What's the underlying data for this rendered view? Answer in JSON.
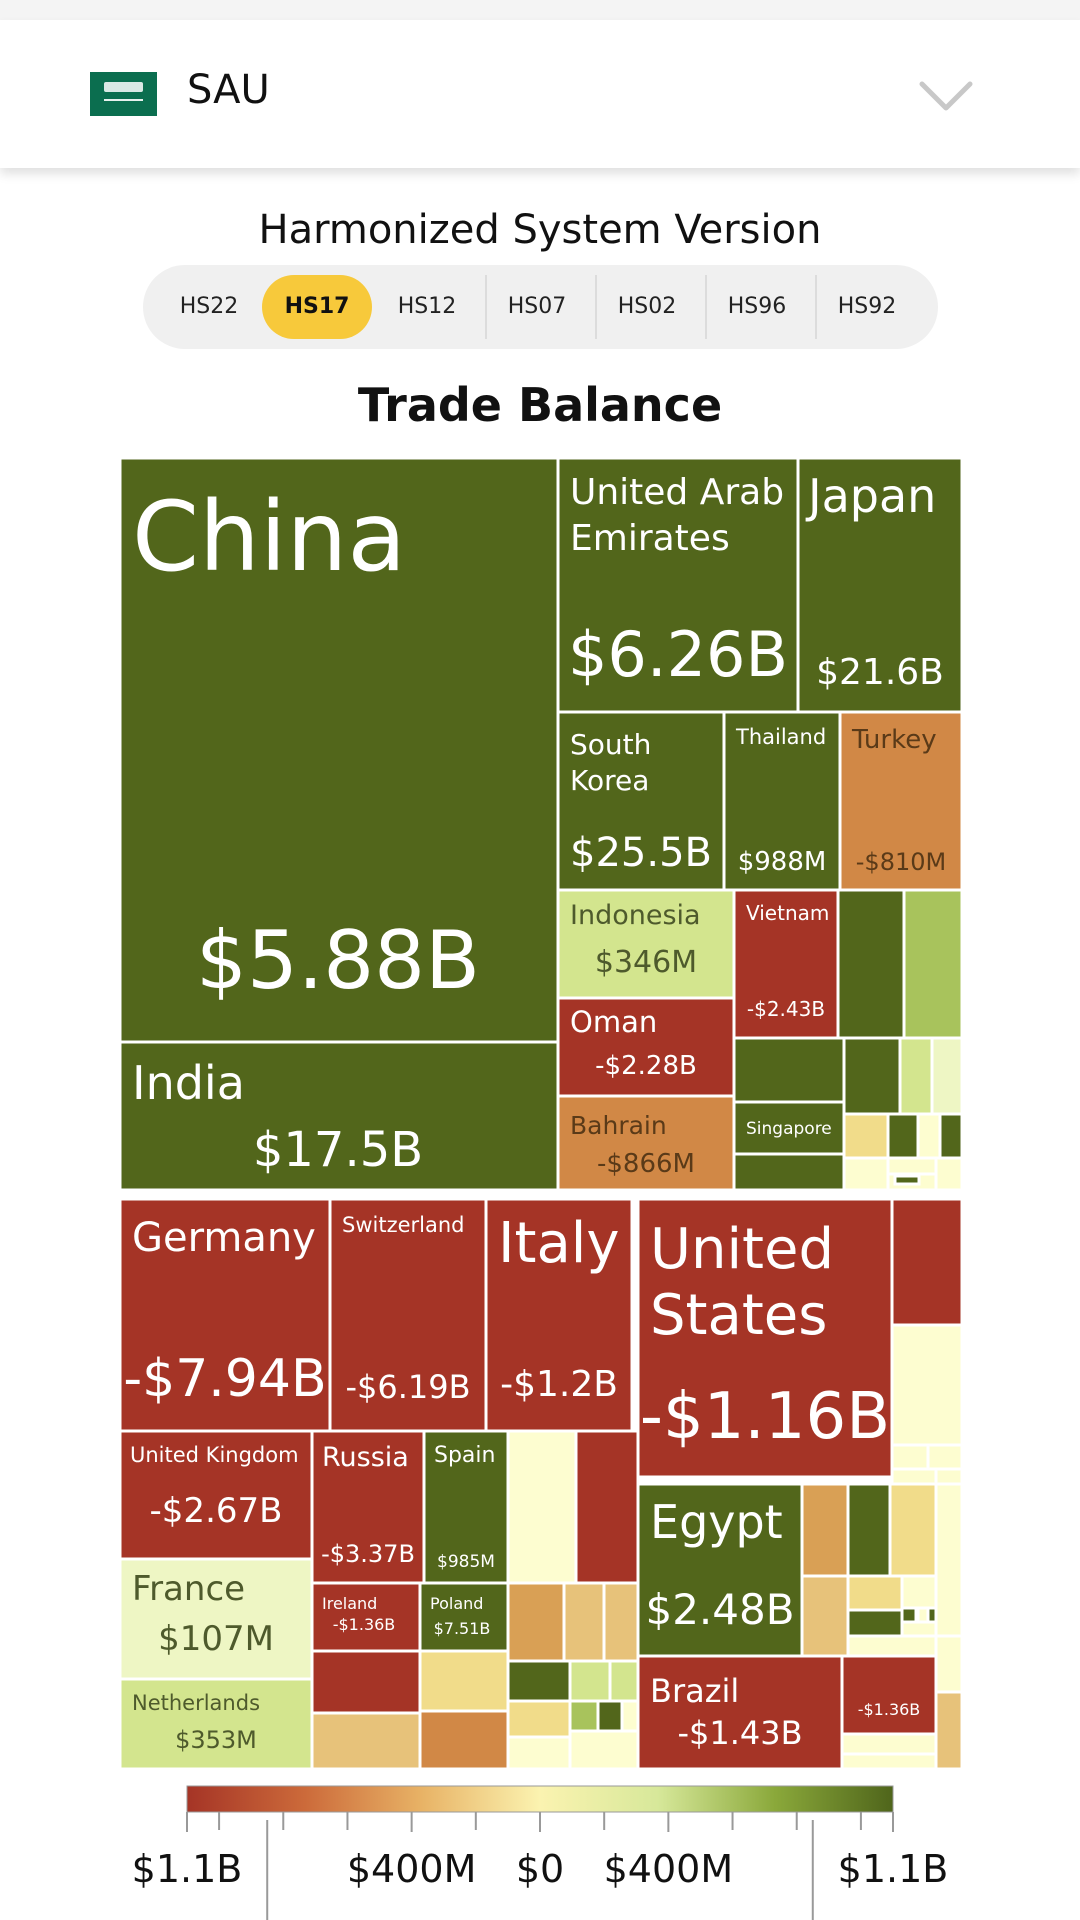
{
  "header": {
    "country_code": "SAU",
    "flag_icon": "saudi-arabia-flag-icon",
    "dropdown_icon": "chevron-down-icon"
  },
  "hs_selector": {
    "title": "Harmonized System Version",
    "tabs": [
      "HS22",
      "HS17",
      "HS12",
      "HS07",
      "HS02",
      "HS96",
      "HS92"
    ],
    "active": "HS17"
  },
  "colors": {
    "dark_green": "#52661b",
    "mid_green": "#8aa83a",
    "light_green": "#a8c35c",
    "pale_green": "#d3e58e",
    "paler_green": "#eef6c4",
    "pale_yellow": "#fdfdd0",
    "yellow": "#f1dc8a",
    "tan": "#e7c27a",
    "orange": "#d9a055",
    "dark_orange": "#d18846",
    "red": "#a53426",
    "dark_red": "#9e3024",
    "scale": [
      "#a53426",
      "#cc6a3a",
      "#e8b366",
      "#fbf3b0",
      "#d7e89a",
      "#8aa83a",
      "#4f651b"
    ]
  },
  "chart_data": {
    "type": "treemap",
    "title": "Trade Balance",
    "color_scale": {
      "tick_labels": [
        "$1.1B",
        "$400M",
        "$0",
        "$400M",
        "$1.1B"
      ],
      "ticks": [
        -1100,
        -400,
        0,
        400,
        1100
      ]
    },
    "labeled": [
      {
        "name": "China",
        "value": "$5.88B"
      },
      {
        "name": "India",
        "value": "$17.5B"
      },
      {
        "name": "United Arab Emirates",
        "value": "$6.26B"
      },
      {
        "name": "Japan",
        "value": "$21.6B"
      },
      {
        "name": "South Korea",
        "value": "$25.5B"
      },
      {
        "name": "Thailand",
        "value": "$988M"
      },
      {
        "name": "Turkey",
        "value": "-$810M"
      },
      {
        "name": "Indonesia",
        "value": "$346M"
      },
      {
        "name": "Vietnam",
        "value": "-$2.43B"
      },
      {
        "name": "Oman",
        "value": "-$2.28B"
      },
      {
        "name": "Bahrain",
        "value": "-$866M"
      },
      {
        "name": "Singapore",
        "value": ""
      },
      {
        "name": "Germany",
        "value": "-$7.94B"
      },
      {
        "name": "Switzerland",
        "value": "-$6.19B"
      },
      {
        "name": "Italy",
        "value": "-$1.2B"
      },
      {
        "name": "United States",
        "value": "-$1.16B"
      },
      {
        "name": "United Kingdom",
        "value": "-$2.67B"
      },
      {
        "name": "Russia",
        "value": "-$3.37B"
      },
      {
        "name": "Spain",
        "value": "$985M"
      },
      {
        "name": "France",
        "value": "$107M"
      },
      {
        "name": "Netherlands",
        "value": "$353M"
      },
      {
        "name": "Ireland",
        "value": "-$1.36B"
      },
      {
        "name": "Poland",
        "value": "$7.51B"
      },
      {
        "name": "Egypt",
        "value": "$2.48B"
      },
      {
        "name": "Brazil",
        "value": "-$1.43B"
      },
      {
        "name": "",
        "value": "-$1.36B"
      }
    ]
  }
}
